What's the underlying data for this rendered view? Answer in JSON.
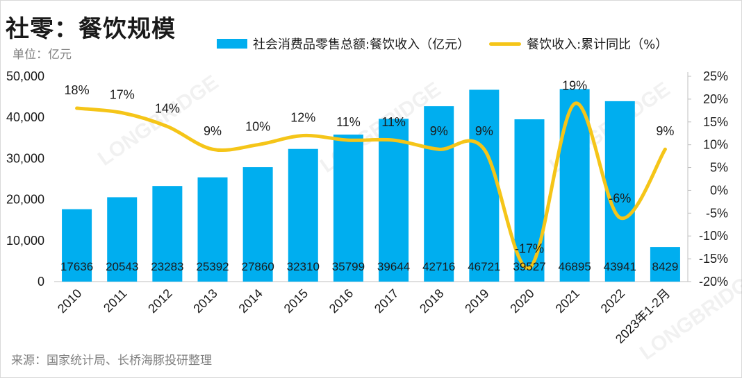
{
  "title": "社零：餐饮规模",
  "unit": "单位：亿元",
  "source": "来源：国家统计局、长桥海豚投研整理",
  "watermark": "LONGBRIDGE",
  "colors": {
    "bar": "#00aeef",
    "line": "#f5c518",
    "axis": "#bfbfbf"
  },
  "chart_data": {
    "type": "bar",
    "title": "社零：餐饮规模",
    "categories": [
      "2010",
      "2011",
      "2012",
      "2013",
      "2014",
      "2015",
      "2016",
      "2017",
      "2018",
      "2019",
      "2020",
      "2021",
      "2022",
      "2023年1-2月"
    ],
    "series": [
      {
        "name": "社会消费品零售总额:餐饮收入（亿元）",
        "type": "bar",
        "axis": "left",
        "values": [
          17636,
          20543,
          23283,
          25392,
          27860,
          32310,
          35799,
          39644,
          42716,
          46721,
          39527,
          46895,
          43941,
          8429
        ]
      },
      {
        "name": "餐饮收入:累计同比（%）",
        "type": "line",
        "axis": "right",
        "values": [
          18,
          17,
          14,
          9,
          10,
          12,
          11,
          11,
          9,
          9,
          -17,
          19,
          -6,
          9
        ],
        "labels": [
          "18%",
          "17%",
          "14%",
          "9%",
          "10%",
          "12%",
          "11%",
          "11%",
          "9%",
          "9%",
          "-17%",
          "19%",
          "-6%",
          "9%"
        ]
      }
    ],
    "y_left": {
      "min": 0,
      "max": 50000,
      "ticks": [
        "0",
        "10,000",
        "20,000",
        "30,000",
        "40,000",
        "50,000"
      ]
    },
    "y_right": {
      "min": -20,
      "max": 25,
      "ticks": [
        "-20%",
        "-15%",
        "-10%",
        "-5%",
        "0%",
        "5%",
        "10%",
        "15%",
        "20%",
        "25%"
      ]
    },
    "legend_position": "top"
  }
}
